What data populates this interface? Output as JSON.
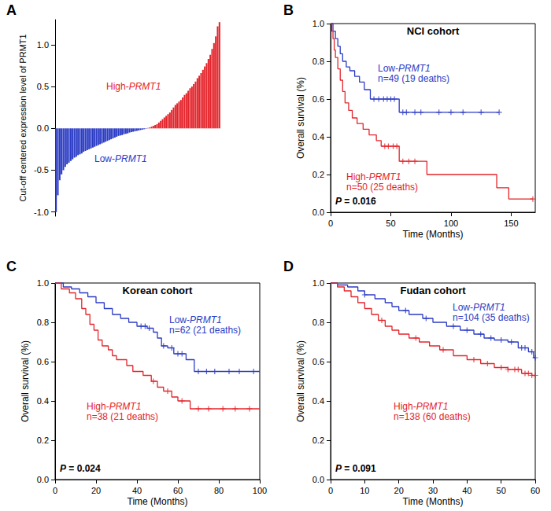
{
  "chart_data": [
    {
      "panel": "A",
      "type": "bar",
      "grid": false,
      "tick_labels": "y",
      "ylabel": "Cut-off centered expression level of PRMT1",
      "ylim": [
        -1.05,
        1.3
      ],
      "yticks": [
        {
          "value": -1,
          "label": "-1.0"
        },
        {
          "value": -0.5,
          "label": "-0.5"
        },
        {
          "value": 0,
          "label": "0.0"
        },
        {
          "value": 0.5,
          "label": "0.5"
        },
        {
          "value": 1,
          "label": "1.0"
        }
      ],
      "categories": [
        null,
        null,
        null,
        null,
        null,
        null,
        null,
        null,
        null,
        null,
        null,
        null,
        null,
        null,
        null,
        null,
        null,
        null,
        null,
        null,
        null,
        null,
        null,
        null,
        null,
        null,
        null,
        null,
        null,
        null,
        null,
        null,
        null,
        null,
        null,
        null,
        null,
        null,
        null,
        null,
        null,
        null,
        null,
        null,
        null,
        null,
        null,
        null,
        null,
        null,
        null,
        null,
        null,
        null,
        null,
        null,
        null,
        null,
        null,
        null,
        null,
        null,
        null,
        null,
        null,
        null,
        null,
        null,
        null,
        null,
        null,
        null,
        null,
        null,
        null,
        null,
        null,
        null,
        null,
        null,
        null,
        null,
        null,
        null,
        null,
        null,
        null,
        null,
        null,
        null
      ],
      "series": [
        {
          "name": "Low-PRMT1",
          "color": "#2b3bc4",
          "values": [
            -1.0,
            -0.8,
            -0.62,
            -0.55,
            -0.5,
            -0.46,
            -0.43,
            -0.41,
            -0.39,
            -0.37,
            -0.35,
            -0.34,
            -0.32,
            -0.31,
            -0.3,
            -0.28,
            -0.27,
            -0.26,
            -0.25,
            -0.24,
            -0.23,
            -0.22,
            -0.21,
            -0.2,
            -0.19,
            -0.18,
            -0.17,
            -0.16,
            -0.15,
            -0.14,
            -0.13,
            -0.12,
            -0.11,
            -0.1,
            -0.09,
            -0.085,
            -0.08,
            -0.07,
            -0.065,
            -0.06,
            -0.05,
            -0.045,
            -0.04,
            -0.035,
            -0.03,
            -0.025,
            -0.02,
            -0.015,
            -0.01,
            -0.005,
            null,
            null,
            null,
            null,
            null,
            null,
            null,
            null,
            null,
            null,
            null,
            null,
            null,
            null,
            null,
            null,
            null,
            null,
            null,
            null,
            null,
            null,
            null,
            null,
            null,
            null,
            null,
            null,
            null,
            null,
            null,
            null,
            null,
            null,
            null,
            null,
            null,
            null,
            null,
            null
          ]
        },
        {
          "name": "High-PRMT1",
          "color": "#e3242b",
          "values": [
            null,
            null,
            null,
            null,
            null,
            null,
            null,
            null,
            null,
            null,
            null,
            null,
            null,
            null,
            null,
            null,
            null,
            null,
            null,
            null,
            null,
            null,
            null,
            null,
            null,
            null,
            null,
            null,
            null,
            null,
            null,
            null,
            null,
            null,
            null,
            null,
            null,
            null,
            null,
            null,
            null,
            null,
            null,
            null,
            null,
            null,
            null,
            null,
            null,
            null,
            0.005,
            0.01,
            0.02,
            0.03,
            0.04,
            0.05,
            0.07,
            0.09,
            0.11,
            0.13,
            0.15,
            0.17,
            0.19,
            0.22,
            0.25,
            0.28,
            0.3,
            0.32,
            0.34,
            0.37,
            0.4,
            0.42,
            0.45,
            0.48,
            0.5,
            0.53,
            0.56,
            0.6,
            0.63,
            0.66,
            0.7,
            0.74,
            0.78,
            0.83,
            0.88,
            0.95,
            1.02,
            1.1,
            1.22,
            1.27
          ]
        }
      ]
    },
    {
      "panel": "B",
      "type": "step",
      "title": "NCI cohort",
      "grid": false,
      "marker": "plus",
      "xlabel": "Time (Months)",
      "ylabel": "Overall survival (%)",
      "xlim": [
        0,
        170
      ],
      "xticks": [
        0,
        50,
        100,
        150
      ],
      "ylim": [
        0,
        1
      ],
      "yticks": [
        {
          "value": 0,
          "label": "0.0"
        },
        {
          "value": 0.2,
          "label": "0.2"
        },
        {
          "value": 0.4,
          "label": "0.4"
        },
        {
          "value": 0.6,
          "label": "0.6"
        },
        {
          "value": 0.8,
          "label": "0.8"
        },
        {
          "value": 1,
          "label": "1.0"
        }
      ],
      "annotations": [
        "P = 0.016"
      ],
      "series": [
        {
          "name": "Low-PRMT1",
          "annotation": "n=49 (19 deaths)",
          "color": "#2b3bc4",
          "x": [
            0,
            2,
            4,
            6,
            8,
            10,
            13,
            16,
            20,
            24,
            28,
            33,
            57,
            140
          ],
          "values": [
            1.0,
            0.96,
            0.92,
            0.88,
            0.84,
            0.8,
            0.77,
            0.75,
            0.72,
            0.69,
            0.65,
            0.6,
            0.53,
            0.53
          ],
          "censored_x": [
            36,
            40,
            44,
            47,
            50,
            53,
            60,
            63,
            70,
            75,
            90,
            100,
            110,
            125,
            140
          ],
          "censored_values": [
            0.6,
            0.6,
            0.6,
            0.6,
            0.6,
            0.6,
            0.53,
            0.53,
            0.53,
            0.53,
            0.53,
            0.53,
            0.53,
            0.53,
            0.53
          ]
        },
        {
          "name": "High-PRMT1",
          "annotation": "n=50 (25 deaths)",
          "color": "#e3242b",
          "x": [
            0,
            1,
            2,
            3,
            4,
            6,
            8,
            10,
            12,
            15,
            18,
            22,
            27,
            32,
            38,
            42,
            57,
            80,
            138,
            148,
            168
          ],
          "values": [
            1.0,
            0.96,
            0.92,
            0.86,
            0.82,
            0.76,
            0.7,
            0.64,
            0.58,
            0.54,
            0.5,
            0.47,
            0.44,
            0.41,
            0.38,
            0.35,
            0.27,
            0.2,
            0.13,
            0.07,
            0.07
          ],
          "censored_x": [
            45,
            48,
            52,
            55,
            60,
            65,
            70,
            168
          ],
          "censored_values": [
            0.35,
            0.35,
            0.35,
            0.35,
            0.27,
            0.27,
            0.27,
            0.07
          ]
        }
      ]
    },
    {
      "panel": "C",
      "type": "step",
      "title": "Korean cohort",
      "grid": false,
      "marker": "plus",
      "xlabel": "Time (Months)",
      "ylabel": "Overall survival (%)",
      "xlim": [
        0,
        100
      ],
      "xticks": [
        0,
        20,
        40,
        60,
        80,
        100
      ],
      "ylim": [
        0,
        1
      ],
      "yticks": [
        {
          "value": 0,
          "label": "0.0"
        },
        {
          "value": 0.2,
          "label": "0.2"
        },
        {
          "value": 0.4,
          "label": "0.4"
        },
        {
          "value": 0.6,
          "label": "0.6"
        },
        {
          "value": 0.8,
          "label": "0.8"
        },
        {
          "value": 1,
          "label": "1.0"
        }
      ],
      "annotations": [
        "P = 0.024"
      ],
      "series": [
        {
          "name": "Low-PRMT1",
          "annotation": "n=62 (21 deaths)",
          "color": "#2b3bc4",
          "x": [
            0,
            4,
            8,
            12,
            16,
            20,
            24,
            28,
            32,
            36,
            40,
            45,
            48,
            50,
            52,
            55,
            58,
            64,
            68,
            100
          ],
          "values": [
            1.0,
            0.98,
            0.97,
            0.95,
            0.93,
            0.9,
            0.87,
            0.84,
            0.82,
            0.8,
            0.78,
            0.77,
            0.75,
            0.72,
            0.68,
            0.67,
            0.64,
            0.61,
            0.55,
            0.55
          ],
          "censored_x": [
            42,
            44,
            46,
            53,
            57,
            60,
            62,
            70,
            74,
            78,
            85,
            90,
            97
          ],
          "censored_values": [
            0.78,
            0.78,
            0.77,
            0.68,
            0.67,
            0.64,
            0.64,
            0.55,
            0.55,
            0.55,
            0.55,
            0.55,
            0.55
          ]
        },
        {
          "name": "High-PRMT1",
          "annotation": "n=38 (21 deaths)",
          "color": "#e3242b",
          "x": [
            0,
            3,
            7,
            10,
            13,
            15,
            17,
            19,
            21,
            23,
            26,
            28,
            30,
            35,
            38,
            43,
            47,
            50,
            53,
            57,
            60,
            66,
            100
          ],
          "values": [
            1.0,
            0.97,
            0.95,
            0.92,
            0.87,
            0.84,
            0.79,
            0.76,
            0.71,
            0.68,
            0.66,
            0.63,
            0.61,
            0.58,
            0.55,
            0.53,
            0.5,
            0.47,
            0.45,
            0.42,
            0.4,
            0.36,
            0.36
          ],
          "censored_x": [
            48,
            55,
            62,
            70,
            75,
            82,
            88,
            95
          ],
          "censored_values": [
            0.5,
            0.45,
            0.4,
            0.36,
            0.36,
            0.36,
            0.36,
            0.36
          ]
        }
      ]
    },
    {
      "panel": "D",
      "type": "step",
      "title": "Fudan cohort",
      "grid": false,
      "marker": "plus",
      "xlabel": "Time (Months)",
      "ylabel": "Overall survival (%)",
      "xlim": [
        0,
        60
      ],
      "xticks": [
        0,
        10,
        20,
        30,
        40,
        50,
        60
      ],
      "ylim": [
        0,
        1
      ],
      "yticks": [
        {
          "value": 0,
          "label": "0.0"
        },
        {
          "value": 0.2,
          "label": "0.2"
        },
        {
          "value": 0.4,
          "label": "0.4"
        },
        {
          "value": 0.6,
          "label": "0.6"
        },
        {
          "value": 0.8,
          "label": "0.8"
        },
        {
          "value": 1,
          "label": "1.0"
        }
      ],
      "annotations": [
        "P = 0.091"
      ],
      "series": [
        {
          "name": "Low-PRMT1",
          "annotation": "n=104 (35 deaths)",
          "color": "#2b3bc4",
          "x": [
            0,
            2,
            5,
            8,
            10,
            13,
            16,
            18,
            20,
            23,
            27,
            30,
            34,
            38,
            42,
            45,
            48,
            52,
            55,
            58,
            59.5,
            60
          ],
          "values": [
            1.0,
            0.99,
            0.98,
            0.96,
            0.94,
            0.92,
            0.9,
            0.88,
            0.86,
            0.84,
            0.82,
            0.8,
            0.78,
            0.76,
            0.74,
            0.72,
            0.71,
            0.7,
            0.67,
            0.65,
            0.62,
            0.62
          ],
          "censored_x": [
            10,
            22,
            28,
            36,
            40,
            44,
            47,
            50,
            53,
            56,
            57,
            59,
            60
          ],
          "censored_values": [
            0.94,
            0.86,
            0.82,
            0.78,
            0.76,
            0.74,
            0.72,
            0.71,
            0.7,
            0.67,
            0.67,
            0.65,
            0.62
          ]
        },
        {
          "name": "High-PRMT1",
          "annotation": "n=138 (60 deaths)",
          "color": "#e3242b",
          "x": [
            0,
            2,
            4,
            6,
            8,
            10,
            12,
            14,
            16,
            18,
            20,
            23,
            26,
            29,
            32,
            36,
            40,
            44,
            48,
            52,
            56,
            59,
            60
          ],
          "values": [
            1.0,
            0.98,
            0.96,
            0.93,
            0.9,
            0.87,
            0.84,
            0.81,
            0.78,
            0.76,
            0.74,
            0.72,
            0.7,
            0.68,
            0.66,
            0.63,
            0.61,
            0.59,
            0.57,
            0.56,
            0.54,
            0.53,
            0.53
          ],
          "censored_x": [
            15,
            25,
            33,
            42,
            46,
            50,
            52,
            54,
            55,
            57,
            58,
            59,
            60
          ],
          "censored_values": [
            0.81,
            0.72,
            0.66,
            0.61,
            0.59,
            0.57,
            0.56,
            0.56,
            0.56,
            0.54,
            0.54,
            0.53,
            0.53
          ]
        }
      ]
    }
  ]
}
